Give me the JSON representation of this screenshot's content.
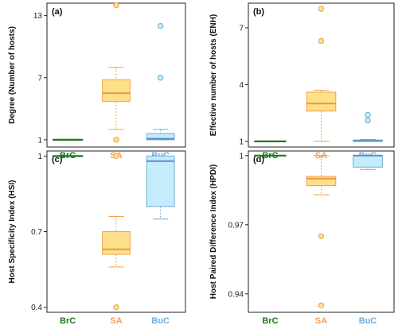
{
  "colors": {
    "BrC": "#1a7a1a",
    "SA": "#f0a050",
    "BuC": "#6aaed8",
    "SA_fill": "#ffe08a",
    "BuC_fill": "#c4ecfa"
  },
  "chart_data": [
    {
      "type": "box",
      "panel_label": "(a)",
      "ylabel": "Degree (Number of hosts)",
      "categories": [
        "BrC",
        "SA",
        "BuC"
      ],
      "yticks": [
        1,
        7,
        13
      ],
      "ylim": [
        0.3,
        14.2
      ],
      "boxes": [
        {
          "category": "BrC",
          "whisker_low": 1,
          "q1": 1,
          "median": 1,
          "q3": 1,
          "whisker_high": 1,
          "outliers": []
        },
        {
          "category": "SA",
          "whisker_low": 2,
          "q1": 4.7,
          "median": 5.5,
          "q3": 6.8,
          "whisker_high": 8,
          "outliers": [
            1,
            14
          ]
        },
        {
          "category": "BuC",
          "whisker_low": 1,
          "q1": 1,
          "median": 1.1,
          "q3": 1.6,
          "whisker_high": 2,
          "outliers": [
            7,
            12
          ]
        }
      ]
    },
    {
      "type": "box",
      "panel_label": "(b)",
      "ylabel": "Effective number of hosts (ENH)",
      "categories": [
        "BrC",
        "SA",
        "BuC"
      ],
      "yticks": [
        1,
        4,
        7
      ],
      "ylim": [
        0.7,
        8.3
      ],
      "boxes": [
        {
          "category": "BrC",
          "whisker_low": 1,
          "q1": 1,
          "median": 1,
          "q3": 1,
          "whisker_high": 1,
          "outliers": []
        },
        {
          "category": "SA",
          "whisker_low": 1,
          "q1": 2.6,
          "median": 3.0,
          "q3": 3.6,
          "whisker_high": 3.7,
          "outliers": [
            6.3,
            8
          ]
        },
        {
          "category": "BuC",
          "whisker_low": 1,
          "q1": 1,
          "median": 1.02,
          "q3": 1.07,
          "whisker_high": 1.1,
          "outliers": [
            2.1,
            2.4
          ]
        }
      ]
    },
    {
      "type": "box",
      "panel_label": "(c)",
      "ylabel": "Host Specificity Index (HSI)",
      "categories": [
        "BrC",
        "SA",
        "BuC"
      ],
      "yticks": [
        0.4,
        0.7,
        1.0
      ],
      "ylim": [
        0.38,
        1.02
      ],
      "boxes": [
        {
          "category": "BrC",
          "whisker_low": 1,
          "q1": 1,
          "median": 1,
          "q3": 1,
          "whisker_high": 1,
          "outliers": []
        },
        {
          "category": "SA",
          "whisker_low": 0.56,
          "q1": 0.61,
          "median": 0.63,
          "q3": 0.7,
          "whisker_high": 0.76,
          "outliers": [
            0.4,
            1.0
          ]
        },
        {
          "category": "BuC",
          "whisker_low": 0.75,
          "q1": 0.8,
          "median": 0.98,
          "q3": 1.0,
          "whisker_high": 1.0,
          "outliers": []
        }
      ]
    },
    {
      "type": "box",
      "panel_label": "(d)",
      "ylabel": "Host Paired Difference Index (HPDI)",
      "categories": [
        "BrC",
        "SA",
        "BuC"
      ],
      "yticks": [
        0.94,
        0.97,
        1.0
      ],
      "ylim": [
        0.932,
        1.002
      ],
      "boxes": [
        {
          "category": "BrC",
          "whisker_low": 1,
          "q1": 1,
          "median": 1,
          "q3": 1,
          "whisker_high": 1,
          "outliers": []
        },
        {
          "category": "SA",
          "whisker_low": 0.983,
          "q1": 0.987,
          "median": 0.99,
          "q3": 0.991,
          "whisker_high": 1.0,
          "outliers": [
            0.935,
            0.965
          ]
        },
        {
          "category": "BuC",
          "whisker_low": 0.994,
          "q1": 0.995,
          "median": 1.0,
          "q3": 1.0,
          "whisker_high": 1.0,
          "outliers": []
        }
      ]
    }
  ]
}
